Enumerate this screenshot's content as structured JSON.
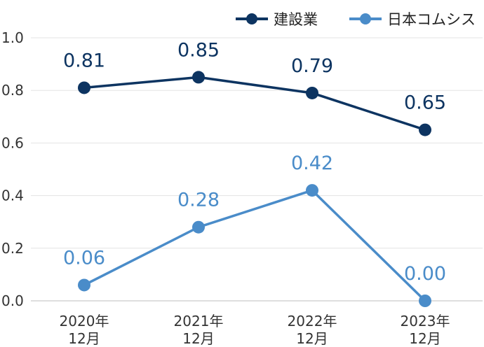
{
  "chart_data": {
    "type": "line",
    "title": "",
    "xlabel": "",
    "ylabel": "",
    "categories": [
      [
        "2020年",
        "12月"
      ],
      [
        "2021年",
        "12月"
      ],
      [
        "2022年",
        "12月"
      ],
      [
        "2023年",
        "12月"
      ]
    ],
    "ylim": [
      0,
      1.0
    ],
    "yticks": [
      "0.0",
      "0.2",
      "0.4",
      "0.6",
      "0.8",
      "1.0"
    ],
    "grid": true,
    "legend": "top-right",
    "series": [
      {
        "name": "建設業",
        "color": "#0d3461",
        "values": [
          0.81,
          0.85,
          0.79,
          0.65
        ],
        "labels": [
          "0.81",
          "0.85",
          "0.79",
          "0.65"
        ]
      },
      {
        "name": "日本コムシス",
        "color": "#4a8cc9",
        "values": [
          0.06,
          0.28,
          0.42,
          0.0
        ],
        "labels": [
          "0.06",
          "0.28",
          "0.42",
          "0.00"
        ]
      }
    ]
  }
}
